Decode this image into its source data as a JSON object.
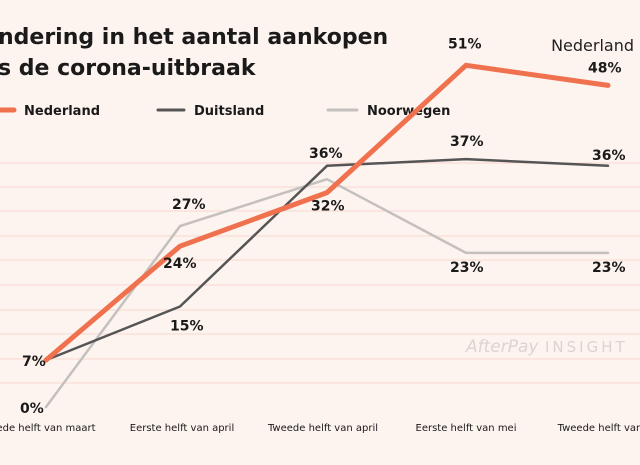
{
  "title_line1": "ndering in het aantal aankopen",
  "title_line2": "s de corona-uitbraak",
  "region_label": "Nederland",
  "watermark": {
    "brand": "AfterPay",
    "suffix": "INSIGHT"
  },
  "chart_data": {
    "type": "line",
    "title": "ndering in het aantal aankopen s de corona-uitbraak",
    "categories": [
      "ede helft van maart",
      "Eerste helft van april",
      "Tweede helft van april",
      "Eerste helft van mei",
      "Tweede helft van"
    ],
    "ylim": [
      0,
      70
    ],
    "series": [
      {
        "name": "Nederland",
        "color": "#f0714d",
        "values": [
          7,
          24,
          32,
          51,
          48
        ],
        "labels": [
          "7%",
          "24%",
          "32%",
          "51%",
          "48%"
        ]
      },
      {
        "name": "Duitsland",
        "color": "#555555",
        "values": [
          7,
          15,
          36,
          37,
          36
        ],
        "labels": [
          "",
          "15%",
          "36%",
          "37%",
          "36%"
        ]
      },
      {
        "name": "Noorwegen",
        "color": "#c4c0be",
        "values": [
          0,
          27,
          34,
          23,
          23
        ],
        "labels": [
          "0%",
          "27%",
          "",
          "23%",
          "23%"
        ]
      }
    ]
  }
}
